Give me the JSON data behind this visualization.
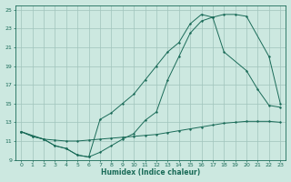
{
  "xlabel": "Humidex (Indice chaleur)",
  "bg_color": "#cce8e0",
  "grid_color": "#a0c4bc",
  "line_color": "#1a6b58",
  "xlim": [
    -0.5,
    23.5
  ],
  "ylim": [
    9,
    25.5
  ],
  "xticks": [
    0,
    1,
    2,
    3,
    4,
    5,
    6,
    7,
    8,
    9,
    10,
    11,
    12,
    13,
    14,
    15,
    16,
    17,
    18,
    19,
    20,
    21,
    22,
    23
  ],
  "yticks": [
    9,
    11,
    13,
    15,
    17,
    19,
    21,
    23,
    25
  ],
  "line1_x": [
    0,
    1,
    2,
    3,
    4,
    5,
    6,
    7,
    8,
    9,
    10,
    11,
    12,
    13,
    14,
    15,
    16,
    17,
    18,
    19,
    20,
    21,
    22,
    23
  ],
  "line1_y": [
    12.0,
    11.5,
    11.2,
    11.1,
    11.0,
    11.0,
    11.1,
    11.2,
    11.3,
    11.4,
    11.5,
    11.6,
    11.7,
    11.9,
    12.1,
    12.3,
    12.5,
    12.7,
    12.9,
    13.0,
    13.1,
    13.1,
    13.1,
    13.0
  ],
  "line2_x": [
    0,
    1,
    2,
    3,
    4,
    5,
    6,
    7,
    8,
    9,
    10,
    11,
    12,
    13,
    14,
    15,
    16,
    17,
    18,
    19,
    20,
    22,
    23
  ],
  "line2_y": [
    12.0,
    11.5,
    11.2,
    10.5,
    10.2,
    9.5,
    9.3,
    9.8,
    10.5,
    11.2,
    11.8,
    13.2,
    14.1,
    17.5,
    20.0,
    22.5,
    23.8,
    24.2,
    24.5,
    24.5,
    24.3,
    20.0,
    15.0
  ],
  "line3_x": [
    0,
    2,
    3,
    4,
    5,
    6,
    7,
    8,
    9,
    10,
    11,
    12,
    13,
    14,
    15,
    16,
    17,
    18,
    20,
    21,
    22,
    23
  ],
  "line3_y": [
    12.0,
    11.2,
    10.5,
    10.2,
    9.5,
    9.3,
    13.3,
    14.0,
    15.0,
    16.0,
    17.5,
    19.0,
    20.5,
    21.5,
    23.5,
    24.5,
    24.2,
    20.5,
    18.5,
    16.5,
    14.8,
    14.6
  ]
}
